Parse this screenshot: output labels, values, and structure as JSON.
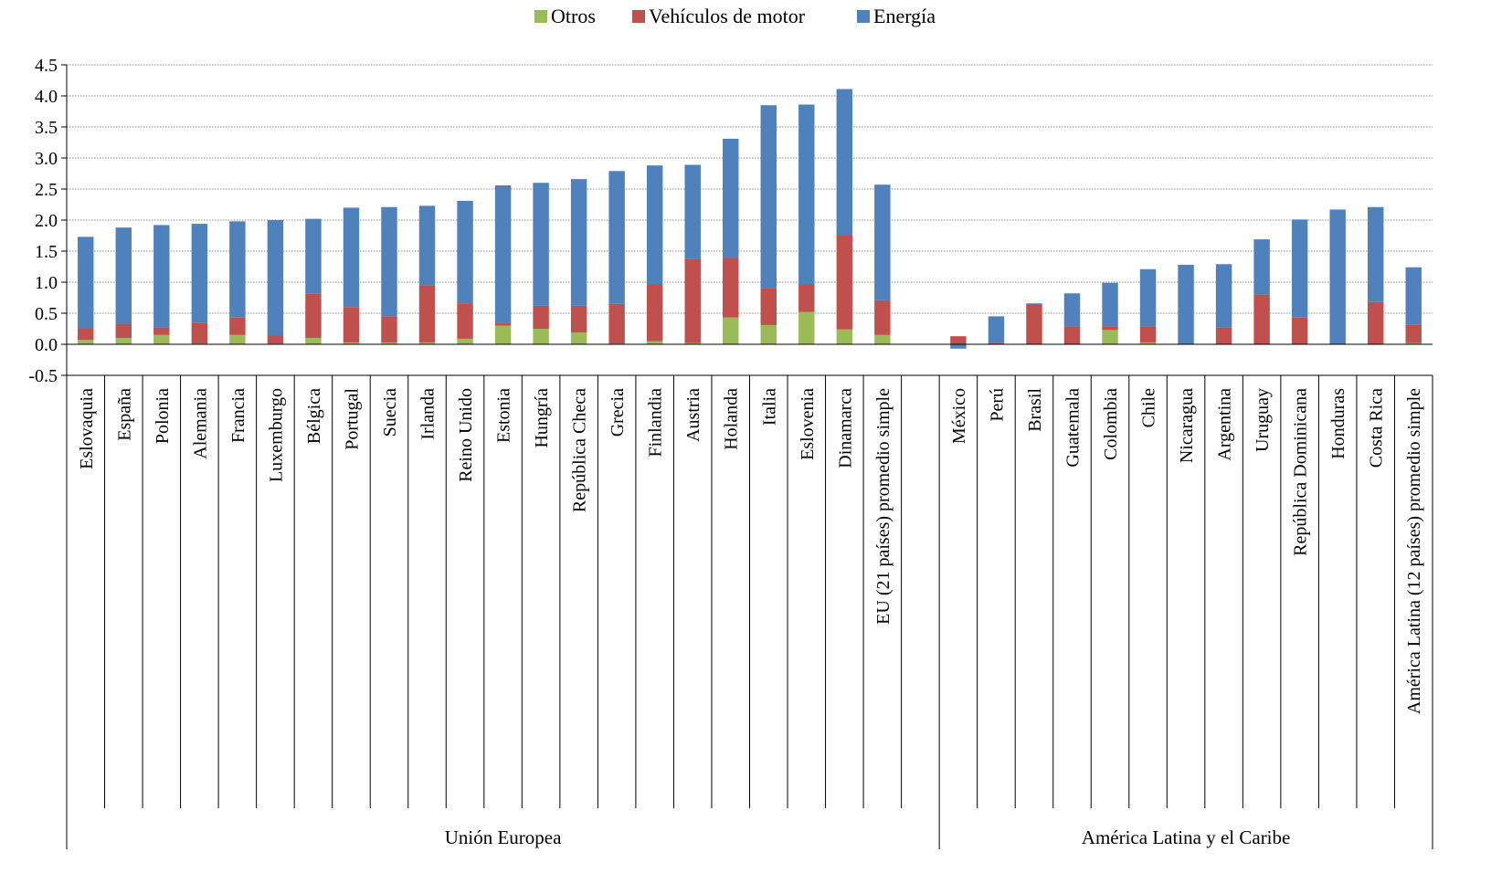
{
  "chart_data": {
    "type": "bar",
    "stacked": true,
    "title": "",
    "xlabel": "",
    "ylabel": "",
    "ylim": [
      -0.5,
      4.5
    ],
    "y_ticks": [
      "4.5",
      "4.0",
      "3.5",
      "3.0",
      "2.5",
      "2.0",
      "1.5",
      "1.0",
      "0.5",
      "0.0",
      "-0.5"
    ],
    "y_tick_values": [
      4.5,
      4.0,
      3.5,
      3.0,
      2.5,
      2.0,
      1.5,
      1.0,
      0.5,
      0.0,
      -0.5
    ],
    "grid": true,
    "legend": {
      "position": "top",
      "entries": [
        "Otros",
        "Vehículos de motor",
        "Energía"
      ]
    },
    "categories": [
      "Eslovaquia",
      "España",
      "Polonia",
      "Alemania",
      "Francia",
      "Luxemburgo",
      "Bélgica",
      "Portugal",
      "Suecia",
      "Irlanda",
      "Reino Unido",
      "Estonia",
      "Hungría",
      "República Checa",
      "Grecia",
      "Finlandia",
      "Austria",
      "Holanda",
      "Italia",
      "Eslovenia",
      "Dinamarca",
      "EU (21 países) promedio simple",
      "",
      "México",
      "Perú",
      "Brasil",
      "Guatemala",
      "Colombia",
      "Chile",
      "Nicaragua",
      "Argentina",
      "Uruguay",
      "República Dominicana",
      "Honduras",
      "Costa Rica",
      "América Latina (12 países) promedio simple"
    ],
    "groups": [
      {
        "label": "Unión Europea",
        "start": 0,
        "end": 22
      },
      {
        "label": "América Latina y el Caribe",
        "start": 23,
        "end": 35
      }
    ],
    "series": [
      {
        "name": "Otros",
        "color": "#9BBB59",
        "values": [
          0.07,
          0.1,
          0.15,
          0.01,
          0.15,
          0.01,
          0.1,
          0.03,
          0.03,
          0.03,
          0.09,
          0.3,
          0.25,
          0.19,
          0.01,
          0.05,
          0.02,
          0.43,
          0.31,
          0.52,
          0.24,
          0.15,
          null,
          0.0,
          0.0,
          0.0,
          0.0,
          0.23,
          0.03,
          0.0,
          0.0,
          0.0,
          0.0,
          0.0,
          0.0,
          0.02
        ]
      },
      {
        "name": "Vehículos de motor",
        "color": "#C0504D",
        "values": [
          0.18,
          0.23,
          0.12,
          0.33,
          0.28,
          0.13,
          0.72,
          0.57,
          0.42,
          0.92,
          0.57,
          0.05,
          0.37,
          0.43,
          0.64,
          0.92,
          1.36,
          0.96,
          0.6,
          0.45,
          1.51,
          0.56,
          null,
          0.13,
          0.02,
          0.65,
          0.28,
          0.05,
          0.25,
          0.0,
          0.27,
          0.8,
          0.43,
          0.0,
          0.68,
          0.3
        ]
      },
      {
        "name": "Energía",
        "color": "#4F81BD",
        "values": [
          1.48,
          1.55,
          1.65,
          1.6,
          1.55,
          1.86,
          1.2,
          1.6,
          1.76,
          1.28,
          1.65,
          2.21,
          1.98,
          2.04,
          2.14,
          1.91,
          1.51,
          1.92,
          2.94,
          2.89,
          2.36,
          1.86,
          null,
          -0.07,
          0.43,
          0.01,
          0.54,
          0.71,
          0.93,
          1.28,
          1.02,
          0.89,
          1.58,
          2.17,
          1.53,
          0.92
        ]
      }
    ]
  }
}
